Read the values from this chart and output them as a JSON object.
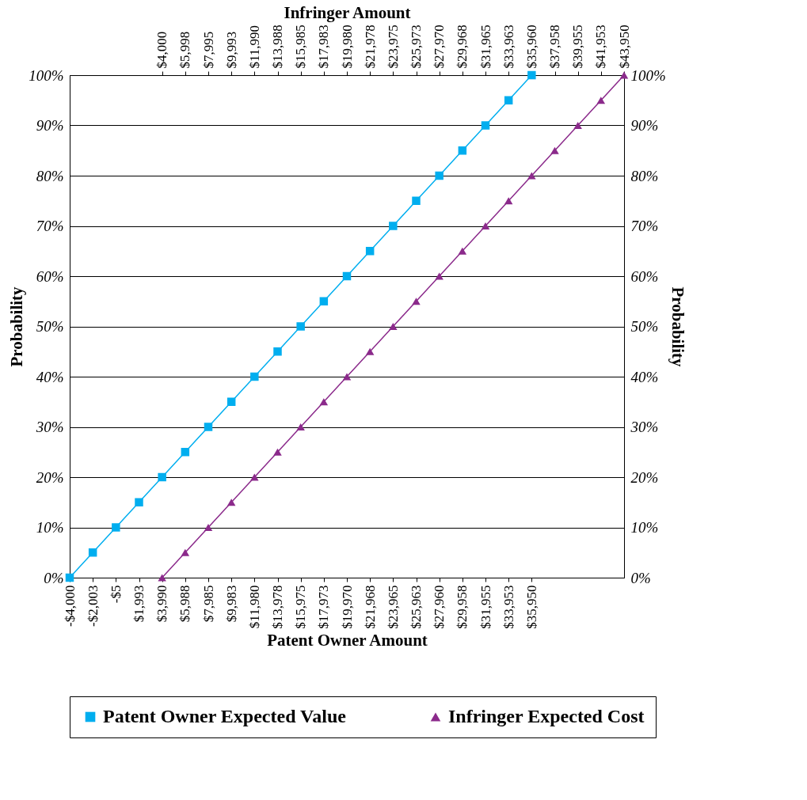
{
  "chart_data": {
    "type": "line",
    "xlabel": "Patent Owner Amount",
    "x2label": "Infringer Amount",
    "ylabel": "Probability",
    "y2label": "Probability",
    "xlim": [
      -4000,
      43940
    ],
    "x2lim": [
      -3990,
      43950
    ],
    "ylim": [
      0,
      100
    ],
    "y2lim": [
      0,
      100
    ],
    "xticks": [
      {
        "value": -4000,
        "label": "-$4,000"
      },
      {
        "value": -2003,
        "label": "-$2,003"
      },
      {
        "value": -5,
        "label": "-$5"
      },
      {
        "value": 1993,
        "label": "$1,993"
      },
      {
        "value": 3990,
        "label": "$3,990"
      },
      {
        "value": 5988,
        "label": "$5,988"
      },
      {
        "value": 7985,
        "label": "$7,985"
      },
      {
        "value": 9983,
        "label": "$9,983"
      },
      {
        "value": 11980,
        "label": "$11,980"
      },
      {
        "value": 13978,
        "label": "$13,978"
      },
      {
        "value": 15975,
        "label": "$15,975"
      },
      {
        "value": 17973,
        "label": "$17,973"
      },
      {
        "value": 19970,
        "label": "$19,970"
      },
      {
        "value": 21968,
        "label": "$21,968"
      },
      {
        "value": 23965,
        "label": "$23,965"
      },
      {
        "value": 25963,
        "label": "$25,963"
      },
      {
        "value": 27960,
        "label": "$27,960"
      },
      {
        "value": 29958,
        "label": "$29,958"
      },
      {
        "value": 31955,
        "label": "$31,955"
      },
      {
        "value": 33953,
        "label": "$33,953"
      },
      {
        "value": 35950,
        "label": "$35,950"
      }
    ],
    "x2ticks": [
      {
        "value": 4000,
        "label": "$4,000"
      },
      {
        "value": 5998,
        "label": "$5,998"
      },
      {
        "value": 7995,
        "label": "$7,995"
      },
      {
        "value": 9993,
        "label": "$9,993"
      },
      {
        "value": 11990,
        "label": "$11,990"
      },
      {
        "value": 13988,
        "label": "$13,988"
      },
      {
        "value": 15985,
        "label": "$15,985"
      },
      {
        "value": 17983,
        "label": "$17,983"
      },
      {
        "value": 19980,
        "label": "$19,980"
      },
      {
        "value": 21978,
        "label": "$21,978"
      },
      {
        "value": 23975,
        "label": "$23,975"
      },
      {
        "value": 25973,
        "label": "$25,973"
      },
      {
        "value": 27970,
        "label": "$27,970"
      },
      {
        "value": 29968,
        "label": "$29,968"
      },
      {
        "value": 31965,
        "label": "$31,965"
      },
      {
        "value": 33963,
        "label": "$33,963"
      },
      {
        "value": 35960,
        "label": "$35,960"
      },
      {
        "value": 37958,
        "label": "$37,958"
      },
      {
        "value": 39955,
        "label": "$39,955"
      },
      {
        "value": 41953,
        "label": "$41,953"
      },
      {
        "value": 43950,
        "label": "$43,950"
      }
    ],
    "yticks": [
      {
        "value": 0,
        "label": "0%"
      },
      {
        "value": 10,
        "label": "10%"
      },
      {
        "value": 20,
        "label": "20%"
      },
      {
        "value": 30,
        "label": "30%"
      },
      {
        "value": 40,
        "label": "40%"
      },
      {
        "value": 50,
        "label": "50%"
      },
      {
        "value": 60,
        "label": "60%"
      },
      {
        "value": 70,
        "label": "70%"
      },
      {
        "value": 80,
        "label": "80%"
      },
      {
        "value": 90,
        "label": "90%"
      },
      {
        "value": 100,
        "label": "100%"
      }
    ],
    "y2ticks": [
      {
        "value": 0,
        "label": "0%"
      },
      {
        "value": 10,
        "label": "10%"
      },
      {
        "value": 20,
        "label": "20%"
      },
      {
        "value": 30,
        "label": "30%"
      },
      {
        "value": 40,
        "label": "40%"
      },
      {
        "value": 50,
        "label": "50%"
      },
      {
        "value": 60,
        "label": "60%"
      },
      {
        "value": 70,
        "label": "70%"
      },
      {
        "value": 80,
        "label": "80%"
      },
      {
        "value": 90,
        "label": "90%"
      },
      {
        "value": 100,
        "label": "100%"
      }
    ],
    "grid": "y",
    "legend": "bottom",
    "series": [
      {
        "name": "Patent Owner Expected Value",
        "color": "#00aeef",
        "marker": "square",
        "x": [
          -4000,
          -2003,
          -5,
          1993,
          3990,
          5988,
          7985,
          9983,
          11980,
          13978,
          15975,
          17973,
          19970,
          21968,
          23965,
          25963,
          27960,
          29958,
          31955,
          33953,
          35950
        ],
        "values": [
          0,
          5,
          10,
          15,
          20,
          25,
          30,
          35,
          40,
          45,
          50,
          55,
          60,
          65,
          70,
          75,
          80,
          85,
          90,
          95,
          100
        ]
      },
      {
        "name": "Infringer Expected Cost",
        "color": "#8b2a8b",
        "marker": "triangle",
        "axis": "x2",
        "x": [
          4000,
          5998,
          7995,
          9993,
          11990,
          13988,
          15985,
          17983,
          19980,
          21978,
          23975,
          25973,
          27970,
          29968,
          31965,
          33963,
          35960,
          37958,
          39955,
          41953,
          43950
        ],
        "values": [
          0,
          5,
          10,
          15,
          20,
          25,
          30,
          35,
          40,
          45,
          50,
          55,
          60,
          65,
          70,
          75,
          80,
          85,
          90,
          95,
          100
        ]
      }
    ]
  }
}
